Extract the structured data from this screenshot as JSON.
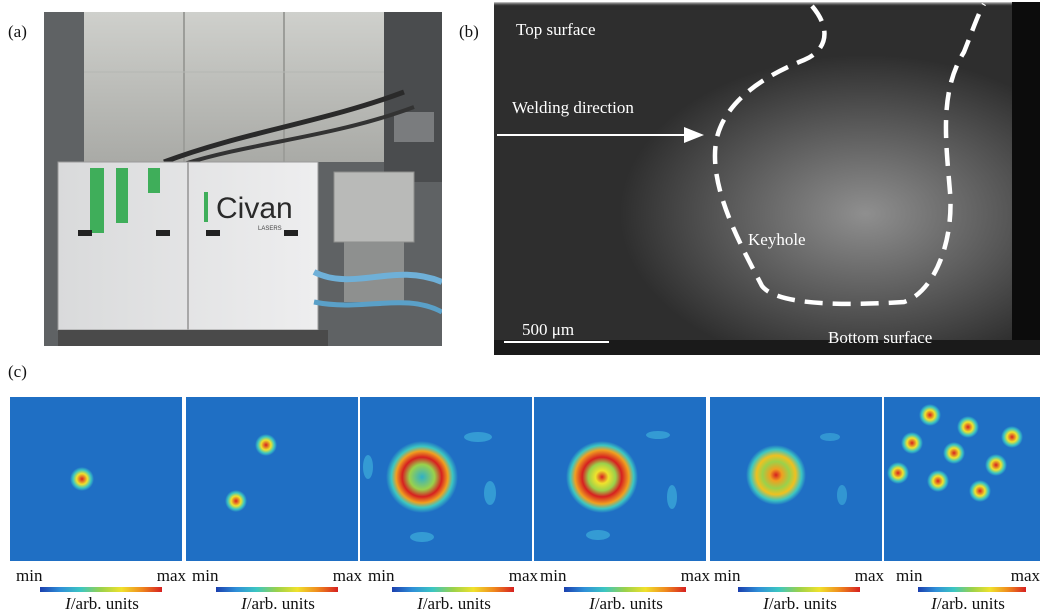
{
  "panel_labels": {
    "a": "(a)",
    "b": "(b)",
    "c": "(c)"
  },
  "photo": {
    "brand_text": "Civan",
    "brand_sub": "LASERS"
  },
  "xray": {
    "top_surface": "Top surface",
    "welding_direction": "Welding direction",
    "keyhole": "Keyhole",
    "bottom_surface": "Bottom surface",
    "scale_bar": "500 μm"
  },
  "beams": [
    {
      "min": "min",
      "max": "max",
      "unit_italic": "I",
      "unit_rest": "/arb. units"
    },
    {
      "min": "min",
      "max": "max",
      "unit_italic": "I",
      "unit_rest": "/arb. units"
    },
    {
      "min": "min",
      "max": "max",
      "unit_italic": "I",
      "unit_rest": "/arb. units"
    },
    {
      "min": "min",
      "max": "max",
      "unit_italic": "I",
      "unit_rest": "/arb. units"
    },
    {
      "min": "min",
      "max": "max",
      "unit_italic": "I",
      "unit_rest": "/arb. units"
    },
    {
      "min": "min",
      "max": "max",
      "unit_italic": "I",
      "unit_rest": "/arb. units"
    }
  ],
  "colors": {
    "field": "#1f6fc4",
    "hot": "#d62020",
    "ring": "#f0c020"
  }
}
